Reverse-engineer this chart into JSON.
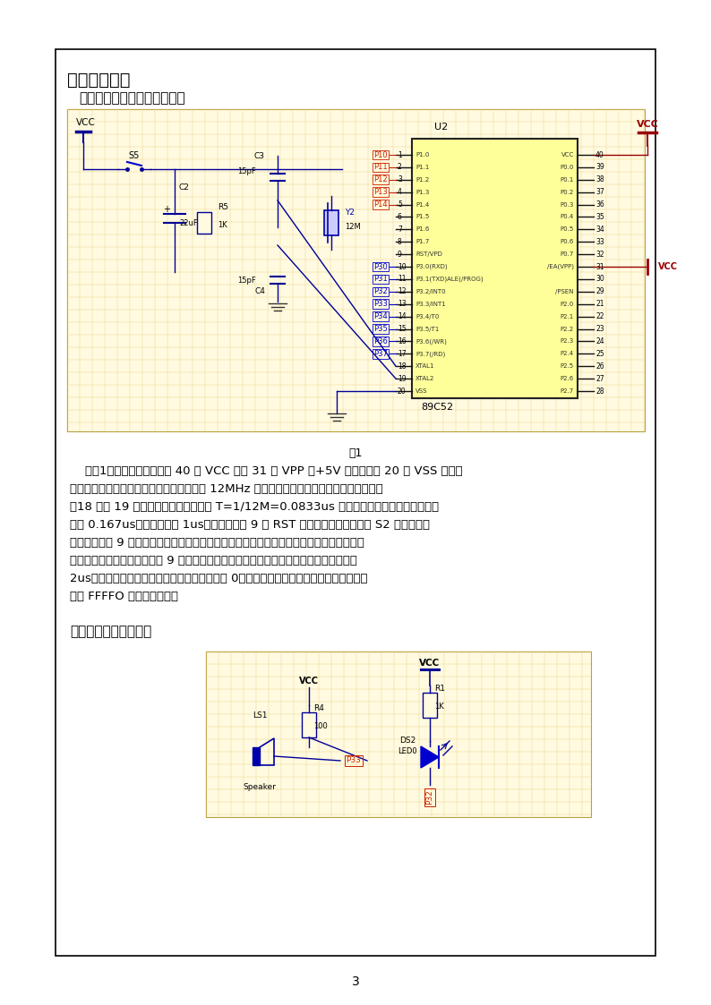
{
  "page_bg": "#ffffff",
  "border_color": "#000000",
  "page_num": "3",
  "section_title": "三：项目设计",
  "subsection1": "（一）：电路的基本连接模块",
  "subsection2": "（二）：水位报警模块",
  "fig_caption": "图1",
  "body_lines": [
    "    如图1所示是，单片机的第 40 脚 VCC 和第 31 脚 VPP 接+5V 的电源，第 20 脚 VSS 接地，",
    "保证单片机的正常工作状态。由振荡频率为 12MHz 的晶体振荡器组成的振荡电路连接单片机",
    "的18 脚和 19 脚，为单片机提供周期为 T=1/12M=0.0833us 的矩形波，此时单片机的时钟周",
    "期为 0.167us，机器周期为 1us。单片机的第 9 脚 RST 连接外部复位电路，当 S2 按键没有按",
    "下时，接入第 9 脚的是低电平，此时单片机依据当前的状态继续工作，当按下开关按键时，",
    "电源与电阵构成通路，输入第 9 脚的是高电平，当高电平持续时间超过两个机器时间（即",
    "2us）时，复位操作生效，单片机内的寄存器清 0，指令缓冲器清空，复位信号消失后，程",
    "序从 FFFFO 地址开始执行。"
  ],
  "grid_bg_color": "#fffae0",
  "grid_line_color": "#e8d080",
  "grid_border_color": "#b8a040",
  "chip_fill": "#ffff99",
  "chip_border": "#222222",
  "wire_color": "#000099",
  "red_label_color": "#cc2200",
  "blue_label_color": "#0000cc",
  "text_color": "#000000",
  "vcc_color": "#990000"
}
